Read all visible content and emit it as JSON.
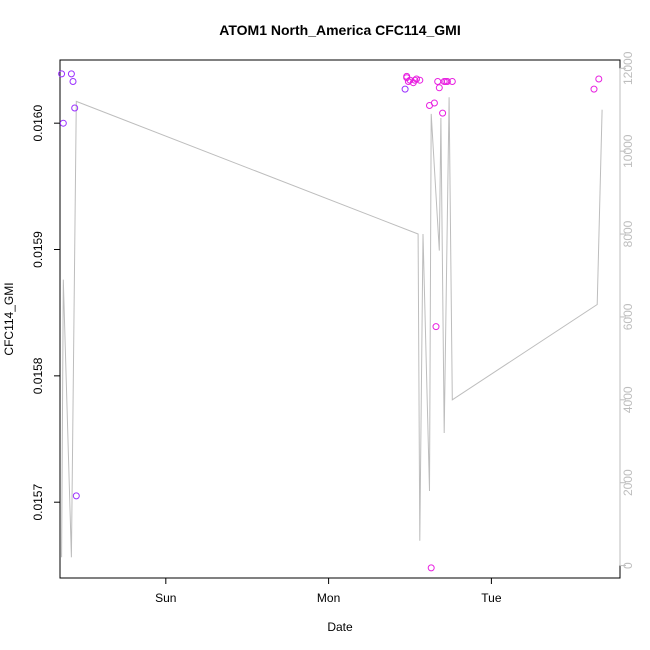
{
  "chart_data": {
    "type": "scatter",
    "title": "ATOM1 North_America CFC114_GMI",
    "xlabel": "Date",
    "ylabel": "CFC114_GMI",
    "y2label": "",
    "x_tick_labels": [
      "Sun",
      "Mon",
      "Tue"
    ],
    "x_ticks_days": [
      1.0,
      2.0,
      3.0
    ],
    "xlim_days": [
      0.35,
      3.79
    ],
    "ylim": [
      0.01564,
      0.01605
    ],
    "y_ticks": [
      0.0157,
      0.0158,
      0.0159,
      0.016
    ],
    "y_tick_labels": [
      "0.0157",
      "0.0158",
      "0.0159",
      "0.0160"
    ],
    "y2lim": [
      -300,
      12200
    ],
    "y2_ticks": [
      0,
      2000,
      4000,
      6000,
      8000,
      10000,
      12000
    ],
    "y2_tick_labels": [
      "0",
      "2000",
      "4000",
      "6000",
      "8000",
      "10000",
      "12000"
    ],
    "grid": false,
    "legend": "none",
    "colors": {
      "line": "#bdbdbd",
      "points_early": "#9b30ff",
      "points_late": "#e81fe0",
      "axis": "#000000",
      "right_axis": "#bdbdbd"
    },
    "points": {
      "x_days": [
        0.36,
        0.37,
        0.42,
        0.43,
        0.44,
        0.45,
        2.47,
        2.48,
        2.48,
        2.49,
        2.5,
        2.52,
        2.53,
        2.54,
        2.56,
        2.62,
        2.63,
        2.65,
        2.66,
        2.67,
        2.68,
        2.7,
        2.71,
        2.72,
        2.73,
        2.76,
        3.63,
        3.66
      ],
      "values": [
        0.016039,
        0.016,
        0.016039,
        0.016033,
        0.016012,
        0.015705,
        0.016027,
        0.016036,
        0.016037,
        0.016033,
        0.016034,
        0.016032,
        0.016034,
        0.016035,
        0.016034,
        0.016014,
        0.015648,
        0.016016,
        0.015839,
        0.016033,
        0.016028,
        0.016008,
        0.016033,
        0.016033,
        0.016033,
        0.016033,
        0.016027,
        0.016035
      ]
    },
    "line": {
      "name": "",
      "x_days": [
        0.36,
        0.37,
        0.42,
        0.45,
        2.55,
        2.56,
        2.58,
        2.62,
        2.63,
        2.68,
        2.69,
        2.71,
        2.74,
        2.76,
        3.65,
        3.68
      ],
      "values": [
        200,
        6900,
        200,
        11200,
        8000,
        600,
        8000,
        1800,
        10900,
        7600,
        10800,
        3200,
        11300,
        4000,
        6300,
        11000
      ]
    }
  }
}
